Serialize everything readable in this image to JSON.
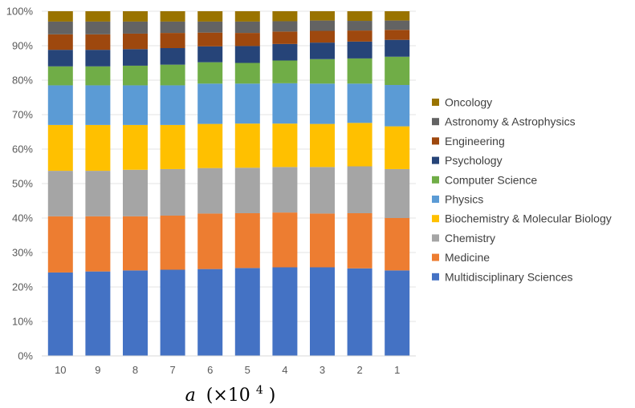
{
  "chart_data": {
    "type": "bar",
    "stacked": true,
    "percent": true,
    "title": "",
    "xlabel": "a (×10⁴)",
    "xlabel_parts": {
      "var": "a",
      "pre": "(×10",
      "exp": "4",
      "post": ")"
    },
    "ylabel": "",
    "ylim": [
      0,
      100
    ],
    "yticks": [
      "0%",
      "10%",
      "20%",
      "30%",
      "40%",
      "50%",
      "60%",
      "70%",
      "80%",
      "90%",
      "100%"
    ],
    "grid": "horizontal",
    "legend_position": "right",
    "categories": [
      "10",
      "9",
      "8",
      "7",
      "6",
      "5",
      "4",
      "3",
      "2",
      "1"
    ],
    "series": [
      {
        "name": "Multidisciplinary Sciences",
        "color": "#4472c4",
        "values": [
          24.2,
          24.5,
          24.8,
          25.0,
          25.2,
          25.5,
          25.7,
          25.7,
          25.4,
          24.8
        ]
      },
      {
        "name": "Medicine",
        "color": "#ed7d31",
        "values": [
          16.3,
          16.0,
          15.7,
          15.7,
          16.1,
          15.9,
          15.9,
          15.6,
          16.0,
          15.2
        ]
      },
      {
        "name": "Chemistry",
        "color": "#a5a5a5",
        "values": [
          13.2,
          13.2,
          13.5,
          13.5,
          13.2,
          13.2,
          13.2,
          13.5,
          13.6,
          14.2
        ]
      },
      {
        "name": "Biochemistry & Molecular Biology",
        "color": "#ffc000",
        "values": [
          13.3,
          13.3,
          13.0,
          12.8,
          12.8,
          12.8,
          12.6,
          12.5,
          12.6,
          12.4
        ]
      },
      {
        "name": "Physics",
        "color": "#5b9bd5",
        "values": [
          11.5,
          11.5,
          11.5,
          11.5,
          11.7,
          11.6,
          11.7,
          11.7,
          11.4,
          12.0
        ]
      },
      {
        "name": "Computer Science",
        "color": "#70ad47",
        "values": [
          5.5,
          5.5,
          5.7,
          6.0,
          6.2,
          6.0,
          6.6,
          7.1,
          7.3,
          8.2
        ]
      },
      {
        "name": "Psychology",
        "color": "#264478",
        "values": [
          4.8,
          4.8,
          4.8,
          4.8,
          4.6,
          4.9,
          4.8,
          4.8,
          4.9,
          4.9
        ]
      },
      {
        "name": "Engineering",
        "color": "#9e480e",
        "values": [
          4.5,
          4.5,
          4.5,
          4.4,
          4.0,
          3.8,
          3.6,
          3.4,
          3.2,
          2.9
        ]
      },
      {
        "name": "Astronomy & Astrophysics",
        "color": "#636363",
        "values": [
          3.7,
          3.7,
          3.5,
          3.3,
          3.2,
          3.3,
          3.0,
          3.0,
          2.8,
          2.7
        ]
      },
      {
        "name": "Oncology",
        "color": "#997300",
        "values": [
          3.0,
          3.0,
          3.0,
          3.0,
          3.0,
          3.0,
          2.9,
          2.7,
          2.8,
          2.7
        ]
      }
    ]
  }
}
